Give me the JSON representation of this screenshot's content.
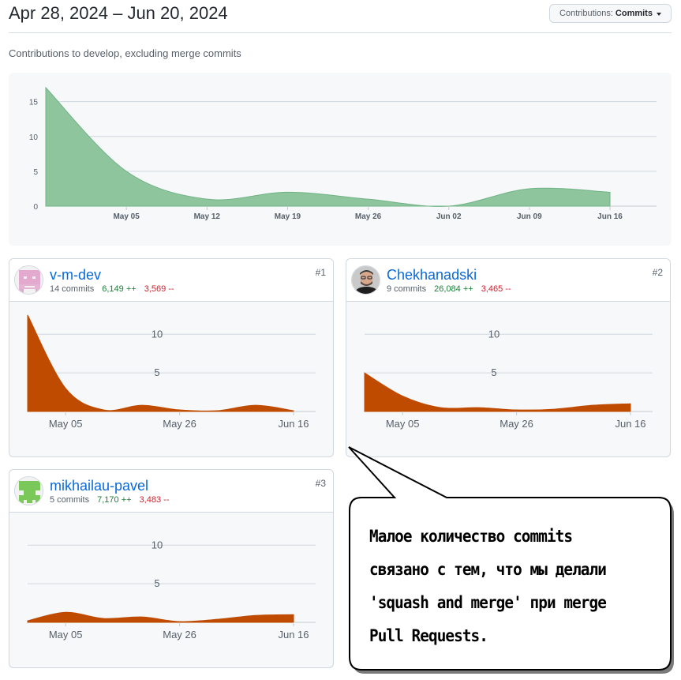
{
  "header": {
    "date_range": "Apr 28, 2024 – Jun 20, 2024",
    "button_prefix": "Contributions:",
    "button_value": "Commits",
    "subtitle": "Contributions to develop, excluding merge commits"
  },
  "colors": {
    "main_fill": "#8ec59d",
    "main_stroke": "#6fb385",
    "user_fill": "#bf4b00",
    "link": "#0969da"
  },
  "chart_data": [
    {
      "type": "area",
      "title": "",
      "x": [
        "Apr 28",
        "May 05",
        "May 12",
        "May 19",
        "May 26",
        "Jun 02",
        "Jun 09",
        "Jun 16"
      ],
      "values": [
        17,
        5,
        1,
        2,
        1,
        0,
        2.5,
        2
      ],
      "xticks": [
        "May 05",
        "May 12",
        "May 19",
        "May 26",
        "Jun 02",
        "Jun 09",
        "Jun 16"
      ],
      "yticks": [
        0,
        5,
        10,
        15
      ],
      "ylim": [
        0,
        17
      ]
    },
    {
      "type": "area",
      "title": "",
      "x": [
        "Apr 28",
        "May 05",
        "May 12",
        "May 19",
        "May 26",
        "Jun 02",
        "Jun 09",
        "Jun 16"
      ],
      "values": [
        12.5,
        3,
        0.2,
        0.8,
        0.2,
        0.1,
        0.8,
        0.1
      ],
      "xticks": [
        "May 05",
        "May 26",
        "Jun 16"
      ],
      "yticks": [
        5,
        10
      ],
      "ylim": [
        0,
        13
      ]
    },
    {
      "type": "area",
      "title": "",
      "x": [
        "Apr 28",
        "May 05",
        "May 12",
        "May 19",
        "May 26",
        "Jun 02",
        "Jun 09",
        "Jun 16"
      ],
      "values": [
        5,
        2,
        0.5,
        0.5,
        0.2,
        0.3,
        0.8,
        1
      ],
      "xticks": [
        "May 05",
        "May 26",
        "Jun 16"
      ],
      "yticks": [
        5,
        10
      ],
      "ylim": [
        0,
        13
      ]
    },
    {
      "type": "area",
      "title": "",
      "x": [
        "Apr 28",
        "May 05",
        "May 12",
        "May 19",
        "May 26",
        "Jun 02",
        "Jun 09",
        "Jun 16"
      ],
      "values": [
        0.2,
        1.3,
        0.5,
        0.7,
        0.1,
        0.4,
        0.9,
        1
      ],
      "xticks": [
        "May 05",
        "May 26",
        "Jun 16"
      ],
      "yticks": [
        5,
        10
      ],
      "ylim": [
        0,
        13
      ]
    }
  ],
  "contributors": [
    {
      "name": "v-m-dev",
      "commits": "14 commits",
      "additions": "6,149 ++",
      "deletions": "3,569 --",
      "rank": "#1",
      "avatar_icon": "identicon-pink-avatar"
    },
    {
      "name": "Chekhanadski",
      "commits": "9 commits",
      "additions": "26,084 ++",
      "deletions": "3,465 --",
      "rank": "#2",
      "avatar_icon": "photo-avatar"
    },
    {
      "name": "mikhailau-pavel",
      "commits": "5 commits",
      "additions": "7,170 ++",
      "deletions": "3,483 --",
      "rank": "#3",
      "avatar_icon": "identicon-green-avatar"
    }
  ],
  "callout": {
    "lines": [
      "Малое количество commits",
      "связано с тем, что мы делали",
      "'squash and merge' при merge",
      "Pull Requests."
    ]
  }
}
